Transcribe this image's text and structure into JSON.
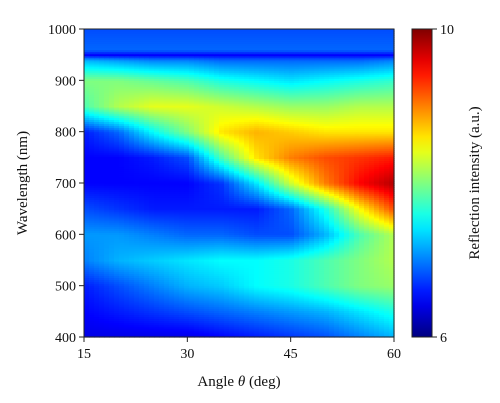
{
  "chart_data": {
    "type": "heatmap",
    "title": "",
    "xlabel": {
      "prefix": "Angle ",
      "symbol": "θ",
      "suffix": " (deg)"
    },
    "ylabel": "Wavelength (nm)",
    "xlim": [
      15,
      60
    ],
    "ylim": [
      400,
      1000
    ],
    "x_ticks": [
      15,
      30,
      45,
      60
    ],
    "y_ticks": [
      400,
      500,
      600,
      700,
      800,
      900,
      1000
    ],
    "x_tick_labels": [
      "15",
      "30",
      "45",
      "60"
    ],
    "y_tick_labels": [
      "400",
      "500",
      "600",
      "700",
      "800",
      "900",
      "1000"
    ],
    "colorbar": {
      "label": "Reflection intensity (a.u.)",
      "min": 6,
      "max": 10,
      "min_label": "6",
      "max_label": "10",
      "colormap": "jet"
    },
    "x": [
      15,
      20,
      25,
      30,
      35,
      40,
      45,
      50,
      55,
      60
    ],
    "y": [
      400,
      450,
      500,
      550,
      600,
      650,
      700,
      750,
      800,
      850,
      900,
      940,
      950,
      960,
      1000
    ],
    "z": [
      [
        6.4,
        6.4,
        6.4,
        6.4,
        6.5,
        6.6,
        6.7,
        6.8,
        7.0,
        7.2
      ],
      [
        6.5,
        6.6,
        6.7,
        6.8,
        6.9,
        7.0,
        7.1,
        7.2,
        7.4,
        7.6
      ],
      [
        6.6,
        6.8,
        7.0,
        7.2,
        7.3,
        7.5,
        7.6,
        7.8,
        8.0,
        8.1
      ],
      [
        7.0,
        7.2,
        7.3,
        7.4,
        7.5,
        7.5,
        7.6,
        7.8,
        8.0,
        8.2
      ],
      [
        7.1,
        7.1,
        7.0,
        6.9,
        6.9,
        6.8,
        6.8,
        7.2,
        7.8,
        8.2
      ],
      [
        6.8,
        6.7,
        6.6,
        6.6,
        6.6,
        6.6,
        6.9,
        7.6,
        8.5,
        9.2
      ],
      [
        6.5,
        6.5,
        6.5,
        6.5,
        6.7,
        7.4,
        8.3,
        9.0,
        9.5,
        9.8
      ],
      [
        6.5,
        6.5,
        6.6,
        6.8,
        7.8,
        8.6,
        9.0,
        9.2,
        9.3,
        9.4
      ],
      [
        6.6,
        6.9,
        7.5,
        8.0,
        8.6,
        8.8,
        8.7,
        8.6,
        8.6,
        8.6
      ],
      [
        7.8,
        8.2,
        8.4,
        8.4,
        8.3,
        8.2,
        8.1,
        8.1,
        8.2,
        8.2
      ],
      [
        8.0,
        8.0,
        7.9,
        7.8,
        7.6,
        7.5,
        7.4,
        7.5,
        7.6,
        7.7
      ],
      [
        7.2,
        7.1,
        7.0,
        7.0,
        6.9,
        6.9,
        6.9,
        6.9,
        6.9,
        7.0
      ],
      [
        6.5,
        6.5,
        6.5,
        6.5,
        6.5,
        6.5,
        6.5,
        6.5,
        6.5,
        6.5
      ],
      [
        6.9,
        6.9,
        6.9,
        6.9,
        6.9,
        6.9,
        6.9,
        6.9,
        6.9,
        6.9
      ],
      [
        6.8,
        6.8,
        6.8,
        6.8,
        6.8,
        6.8,
        6.8,
        6.8,
        6.8,
        6.8
      ]
    ]
  }
}
